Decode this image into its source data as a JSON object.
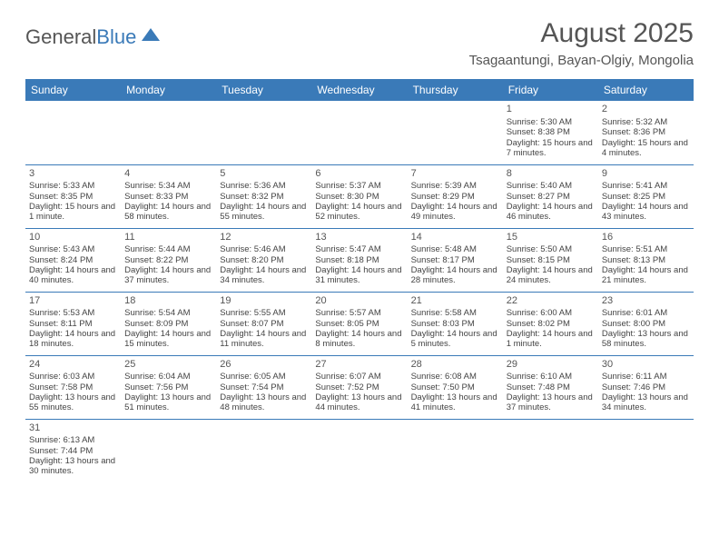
{
  "logo": {
    "text1": "General",
    "text2": "Blue"
  },
  "title": "August 2025",
  "location": "Tsagaantungi, Bayan-Olgiy, Mongolia",
  "colors": {
    "header_bg": "#3a7ab8",
    "header_fg": "#ffffff",
    "text": "#444444",
    "rule": "#3a7ab8",
    "title": "#555555"
  },
  "dayHeaders": [
    "Sunday",
    "Monday",
    "Tuesday",
    "Wednesday",
    "Thursday",
    "Friday",
    "Saturday"
  ],
  "weeks": [
    [
      null,
      null,
      null,
      null,
      null,
      {
        "n": "1",
        "sr": "5:30 AM",
        "ss": "8:38 PM",
        "dl": "15 hours and 7 minutes."
      },
      {
        "n": "2",
        "sr": "5:32 AM",
        "ss": "8:36 PM",
        "dl": "15 hours and 4 minutes."
      }
    ],
    [
      {
        "n": "3",
        "sr": "5:33 AM",
        "ss": "8:35 PM",
        "dl": "15 hours and 1 minute."
      },
      {
        "n": "4",
        "sr": "5:34 AM",
        "ss": "8:33 PM",
        "dl": "14 hours and 58 minutes."
      },
      {
        "n": "5",
        "sr": "5:36 AM",
        "ss": "8:32 PM",
        "dl": "14 hours and 55 minutes."
      },
      {
        "n": "6",
        "sr": "5:37 AM",
        "ss": "8:30 PM",
        "dl": "14 hours and 52 minutes."
      },
      {
        "n": "7",
        "sr": "5:39 AM",
        "ss": "8:29 PM",
        "dl": "14 hours and 49 minutes."
      },
      {
        "n": "8",
        "sr": "5:40 AM",
        "ss": "8:27 PM",
        "dl": "14 hours and 46 minutes."
      },
      {
        "n": "9",
        "sr": "5:41 AM",
        "ss": "8:25 PM",
        "dl": "14 hours and 43 minutes."
      }
    ],
    [
      {
        "n": "10",
        "sr": "5:43 AM",
        "ss": "8:24 PM",
        "dl": "14 hours and 40 minutes."
      },
      {
        "n": "11",
        "sr": "5:44 AM",
        "ss": "8:22 PM",
        "dl": "14 hours and 37 minutes."
      },
      {
        "n": "12",
        "sr": "5:46 AM",
        "ss": "8:20 PM",
        "dl": "14 hours and 34 minutes."
      },
      {
        "n": "13",
        "sr": "5:47 AM",
        "ss": "8:18 PM",
        "dl": "14 hours and 31 minutes."
      },
      {
        "n": "14",
        "sr": "5:48 AM",
        "ss": "8:17 PM",
        "dl": "14 hours and 28 minutes."
      },
      {
        "n": "15",
        "sr": "5:50 AM",
        "ss": "8:15 PM",
        "dl": "14 hours and 24 minutes."
      },
      {
        "n": "16",
        "sr": "5:51 AM",
        "ss": "8:13 PM",
        "dl": "14 hours and 21 minutes."
      }
    ],
    [
      {
        "n": "17",
        "sr": "5:53 AM",
        "ss": "8:11 PM",
        "dl": "14 hours and 18 minutes."
      },
      {
        "n": "18",
        "sr": "5:54 AM",
        "ss": "8:09 PM",
        "dl": "14 hours and 15 minutes."
      },
      {
        "n": "19",
        "sr": "5:55 AM",
        "ss": "8:07 PM",
        "dl": "14 hours and 11 minutes."
      },
      {
        "n": "20",
        "sr": "5:57 AM",
        "ss": "8:05 PM",
        "dl": "14 hours and 8 minutes."
      },
      {
        "n": "21",
        "sr": "5:58 AM",
        "ss": "8:03 PM",
        "dl": "14 hours and 5 minutes."
      },
      {
        "n": "22",
        "sr": "6:00 AM",
        "ss": "8:02 PM",
        "dl": "14 hours and 1 minute."
      },
      {
        "n": "23",
        "sr": "6:01 AM",
        "ss": "8:00 PM",
        "dl": "13 hours and 58 minutes."
      }
    ],
    [
      {
        "n": "24",
        "sr": "6:03 AM",
        "ss": "7:58 PM",
        "dl": "13 hours and 55 minutes."
      },
      {
        "n": "25",
        "sr": "6:04 AM",
        "ss": "7:56 PM",
        "dl": "13 hours and 51 minutes."
      },
      {
        "n": "26",
        "sr": "6:05 AM",
        "ss": "7:54 PM",
        "dl": "13 hours and 48 minutes."
      },
      {
        "n": "27",
        "sr": "6:07 AM",
        "ss": "7:52 PM",
        "dl": "13 hours and 44 minutes."
      },
      {
        "n": "28",
        "sr": "6:08 AM",
        "ss": "7:50 PM",
        "dl": "13 hours and 41 minutes."
      },
      {
        "n": "29",
        "sr": "6:10 AM",
        "ss": "7:48 PM",
        "dl": "13 hours and 37 minutes."
      },
      {
        "n": "30",
        "sr": "6:11 AM",
        "ss": "7:46 PM",
        "dl": "13 hours and 34 minutes."
      }
    ],
    [
      {
        "n": "31",
        "sr": "6:13 AM",
        "ss": "7:44 PM",
        "dl": "13 hours and 30 minutes."
      },
      null,
      null,
      null,
      null,
      null,
      null
    ]
  ],
  "labels": {
    "sunrise": "Sunrise:",
    "sunset": "Sunset:",
    "daylight": "Daylight:"
  }
}
